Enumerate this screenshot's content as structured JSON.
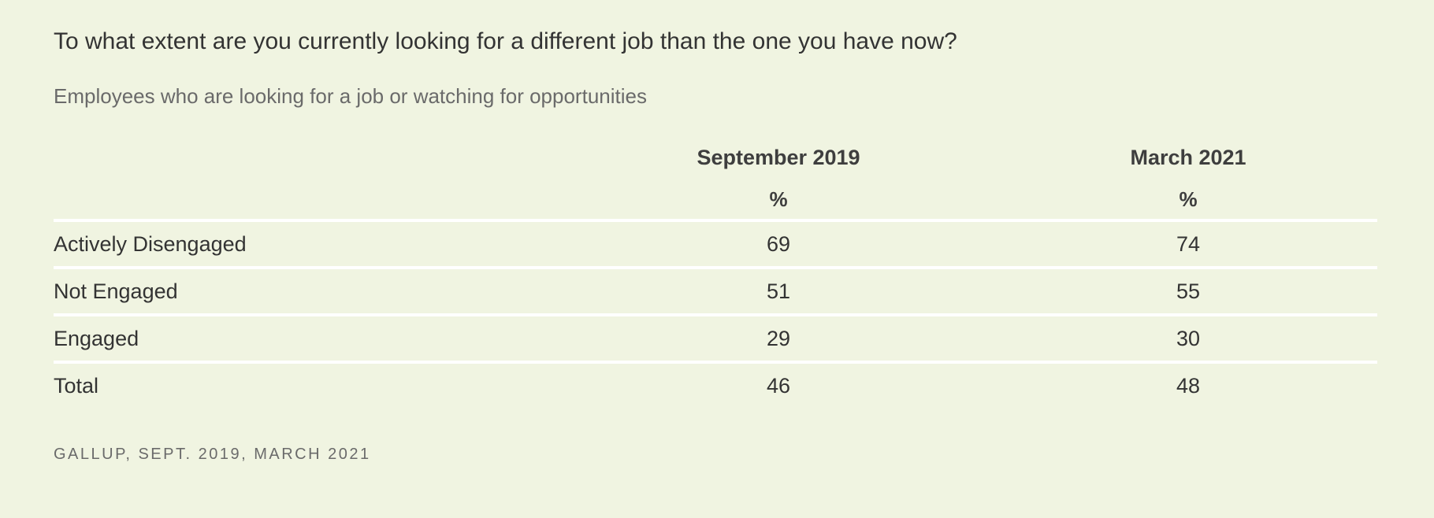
{
  "title": "To what extent are you currently looking for a different job than the one you have now?",
  "subtitle": "Employees who are looking for a job or watching for opportunities",
  "source": "GALLUP, SEPT. 2019, MARCH 2021",
  "chart_data": {
    "type": "table",
    "title": "To what extent are you currently looking for a different job than the one you have now?",
    "subtitle": "Employees who are looking for a job or watching for opportunities",
    "columns": [
      "September 2019",
      "March 2021"
    ],
    "unit": "%",
    "rows": [
      {
        "label": "Actively Disengaged",
        "values": [
          "69",
          "74"
        ]
      },
      {
        "label": "Not Engaged",
        "values": [
          "51",
          "55"
        ]
      },
      {
        "label": "Engaged",
        "values": [
          "29",
          "30"
        ]
      },
      {
        "label": "Total",
        "values": [
          "46",
          "48"
        ]
      }
    ]
  }
}
